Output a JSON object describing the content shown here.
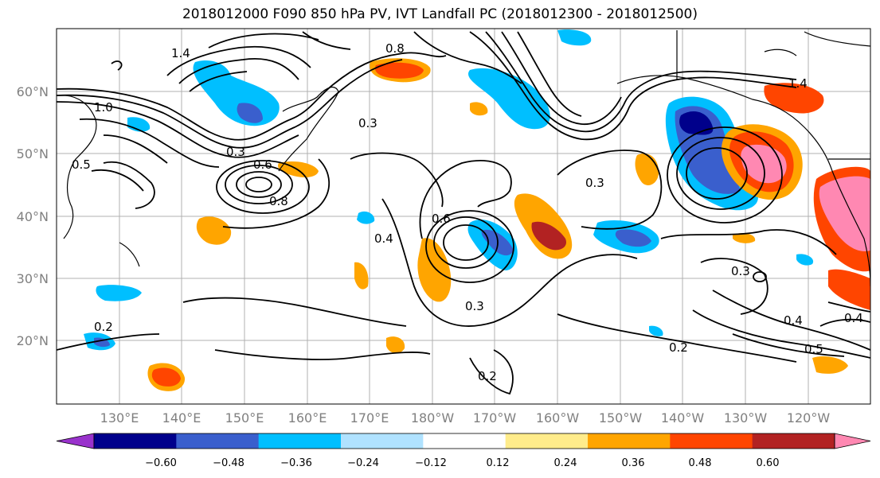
{
  "title": "2018012000 F090 850 hPa PV, IVT Landfall PC (2018012300 - 2018012500)",
  "lat_labels": [
    "60°N",
    "50°N",
    "40°N",
    "30°N",
    "20°N"
  ],
  "lon_labels": [
    "130°E",
    "140°E",
    "150°E",
    "160°E",
    "170°E",
    "180°W",
    "170°W",
    "160°W",
    "150°W",
    "140°W",
    "130°W",
    "120°W"
  ],
  "colorbar": {
    "ticks": [
      "−0.60",
      "−0.48",
      "−0.36",
      "−0.24",
      "−0.12",
      "0.12",
      "0.24",
      "0.36",
      "0.48",
      "0.60"
    ],
    "colors": [
      "#9932cc",
      "#00008b",
      "#3a5fcd",
      "#00bfff",
      "#b0e2ff",
      "#ffffff",
      "#ffec8b",
      "#ffa500",
      "#ff4500",
      "#b22222",
      "#ff88b2"
    ]
  },
  "contour_labels": [
    "1.4",
    "0.8",
    "1.0",
    "0.3",
    "0.5",
    "0.6",
    "0.8",
    "0.3",
    "0.4",
    "0.2",
    "0.2",
    "0.3",
    "0.3",
    "0.2",
    "0.4",
    "0.5",
    "0.4",
    "1.4",
    "0.3",
    "0.6"
  ],
  "colors": {
    "contour": "#000000",
    "grid": "#b0b0b0",
    "axis_text": "#808080"
  }
}
